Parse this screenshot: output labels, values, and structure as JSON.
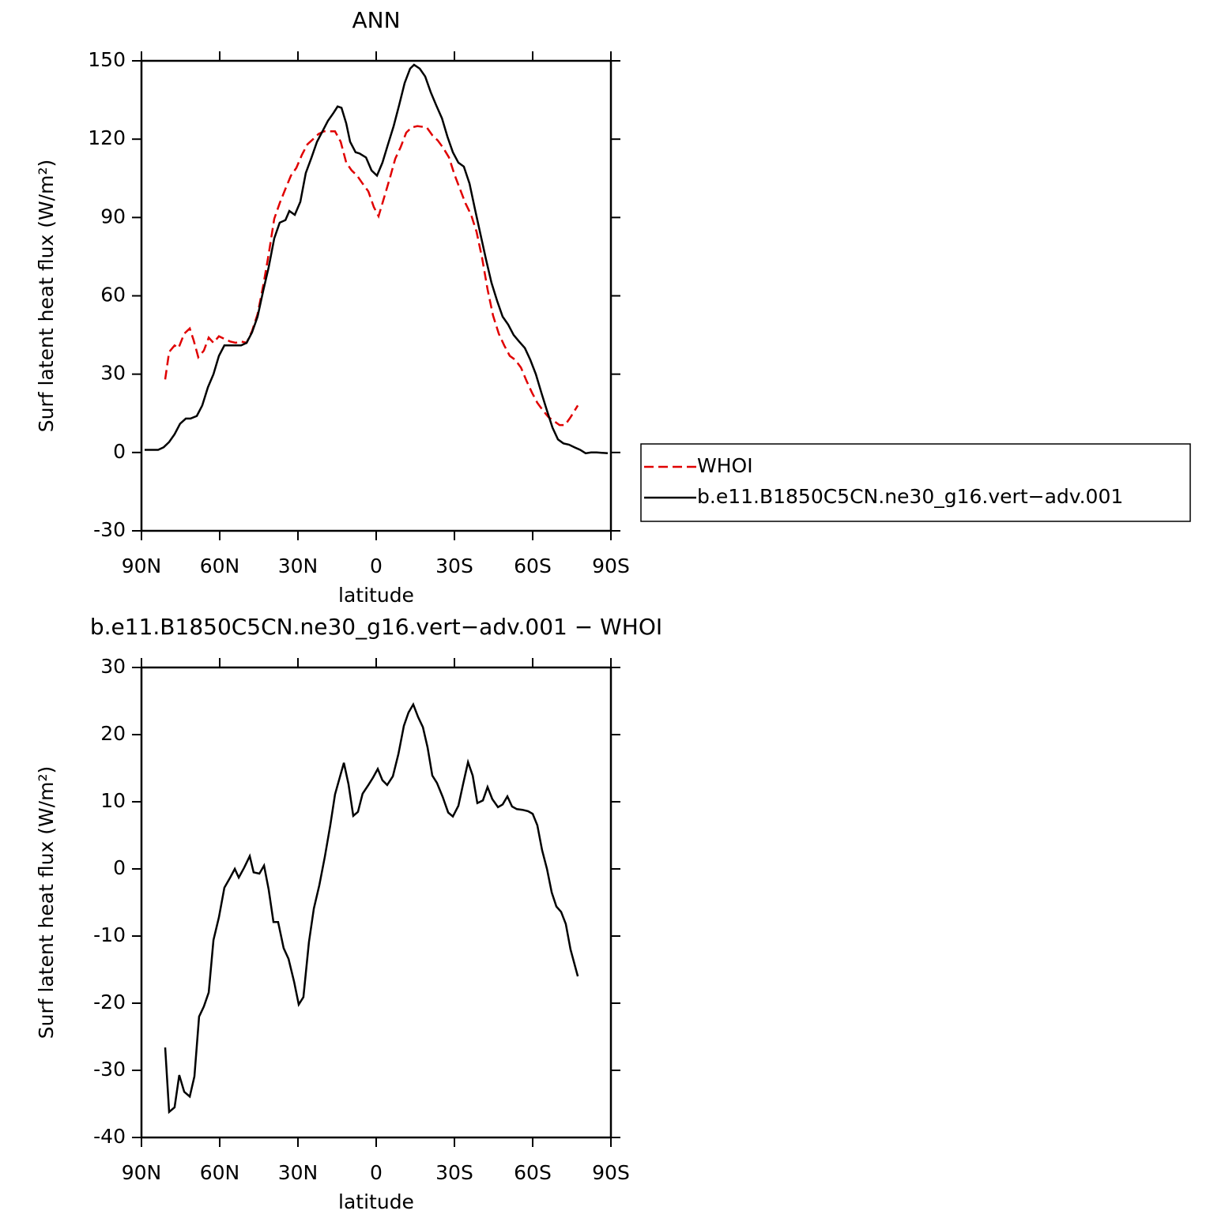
{
  "chart_data": [
    {
      "type": "line",
      "title": "ANN",
      "xlabel": "latitude",
      "ylabel": "Surf latent heat flux (W/m²)",
      "xlim": [
        90,
        -90
      ],
      "xticks": [
        {
          "value": 90,
          "label": "90N"
        },
        {
          "value": 60,
          "label": "60N"
        },
        {
          "value": 30,
          "label": "30N"
        },
        0,
        {
          "value": -30,
          "label": "30S"
        },
        {
          "value": -60,
          "label": "60S"
        },
        {
          "value": -90,
          "label": "90S"
        }
      ],
      "ylim": [
        -30,
        150
      ],
      "yticks": [
        -30,
        0,
        30,
        60,
        90,
        120,
        150
      ],
      "legend": "right",
      "series": [
        {
          "name": "WHOI",
          "color": "#e00000",
          "linestyle": "dashed",
          "x": [
            80.9,
            79.4,
            77.3,
            75.8,
            73.6,
            71.5,
            70,
            68.2,
            66.1,
            64.2,
            62.4,
            60.3,
            58.2,
            56,
            53.9,
            51.8,
            49.7,
            47.6,
            45.5,
            43.3,
            41.2,
            39.1,
            37,
            34.8,
            32.7,
            30.6,
            28.5,
            26.4,
            24.2,
            22.1,
            20,
            15.8,
            13.6,
            11.5,
            9.4,
            7.3,
            5.2,
            3,
            0.9,
            -0.9,
            -3,
            -5.2,
            -7.3,
            -9.4,
            -11.5,
            -13.6,
            -15.8,
            -19.4,
            -21.5,
            -23.6,
            -25.8,
            -27.9,
            -30,
            -32.1,
            -34.2,
            -36.4,
            -38.5,
            -40.6,
            -42.7,
            -44.8,
            -47,
            -49.1,
            -51.2,
            -53.3,
            -55.5,
            -57.6,
            -59.7,
            -61.8,
            -64,
            -66.1,
            -68.2,
            -70.3,
            -72.4,
            -74.5,
            -77.3
          ],
          "values": [
            28,
            38.5,
            41,
            40,
            45.5,
            47.5,
            43,
            36.5,
            39,
            44,
            42,
            44.5,
            43.5,
            42.5,
            42,
            42.5,
            42,
            46.5,
            53,
            64,
            76,
            89.5,
            95.5,
            101,
            106,
            109,
            114,
            118,
            120,
            122,
            123,
            123,
            119,
            111,
            108,
            106,
            103,
            100,
            94,
            90.5,
            97.5,
            105,
            112.5,
            117,
            122.5,
            124.5,
            125,
            124.5,
            121.5,
            119.5,
            116.5,
            113,
            106.5,
            101,
            95.5,
            91,
            84.5,
            74.5,
            62.5,
            52.5,
            45.5,
            41,
            37,
            35.5,
            32.5,
            27.5,
            23,
            19,
            16,
            13.5,
            12,
            10.5,
            10.5,
            13.5,
            18
          ]
        },
        {
          "name": "b.e11.B1850C5CN.ne30_g16.vert−adv.001",
          "color": "#000000",
          "linestyle": "solid",
          "x": [
            88.8,
            83.6,
            81.5,
            79.4,
            77.3,
            75.2,
            73,
            71.2,
            68.8,
            66.7,
            64.5,
            62.4,
            60.3,
            58.2,
            56,
            53.9,
            51.8,
            49.7,
            47.6,
            45.5,
            43.3,
            41.2,
            39.1,
            37,
            34.8,
            33.3,
            31.2,
            29.1,
            27,
            24.8,
            22.7,
            20.6,
            18.5,
            16.4,
            14.8,
            13.3,
            11.5,
            10,
            7.9,
            6.4,
            3.9,
            1.8,
            -0.3,
            -2.4,
            -4.5,
            -6.7,
            -8.8,
            -10.9,
            -13,
            -14.5,
            -16.7,
            -18.8,
            -20.9,
            -23,
            -25.2,
            -27.3,
            -29.4,
            -31.5,
            -33.6,
            -35.8,
            -37.9,
            -40,
            -42.1,
            -44.2,
            -46.4,
            -48.5,
            -50.6,
            -52.7,
            -54.8,
            -57,
            -59.1,
            -61.2,
            -63.3,
            -65.5,
            -67.6,
            -69.7,
            -71.8,
            -73.9,
            -76,
            -78.2,
            -80.3,
            -82.4,
            -84.5,
            -88.8
          ],
          "values": [
            1,
            1,
            2,
            4,
            7,
            11,
            13,
            13,
            14,
            18,
            25,
            30,
            37,
            41,
            41,
            41,
            41,
            42,
            46,
            52,
            62,
            71,
            82,
            88,
            89,
            92.5,
            91,
            96,
            107,
            113,
            119,
            123,
            127,
            130,
            132.5,
            132,
            126,
            119,
            115,
            114.5,
            113,
            108,
            106,
            111,
            118,
            125,
            133,
            141.5,
            147,
            148.5,
            147,
            144,
            138,
            133,
            128,
            121,
            115,
            111,
            109.5,
            103,
            93,
            83.5,
            74,
            65,
            58,
            52,
            49,
            45,
            42.5,
            40,
            35.5,
            30,
            23,
            16,
            9.5,
            5,
            3.5,
            3,
            2,
            1,
            -0.3,
            0,
            0,
            -0.3
          ]
        }
      ]
    },
    {
      "type": "line",
      "title": "b.e11.B1850C5CN.ne30_g16.vert−adv.001 − WHOI",
      "xlabel": "latitude",
      "ylabel": "Surf latent heat flux (W/m²)",
      "xlim": [
        90,
        -90
      ],
      "xticks": [
        {
          "value": 90,
          "label": "90N"
        },
        {
          "value": 60,
          "label": "60N"
        },
        {
          "value": 30,
          "label": "30N"
        },
        0,
        {
          "value": -30,
          "label": "30S"
        },
        {
          "value": -60,
          "label": "60S"
        },
        {
          "value": -90,
          "label": "90S"
        }
      ],
      "ylim": [
        -40,
        30
      ],
      "yticks": [
        -40,
        -30,
        -20,
        -10,
        0,
        10,
        20,
        30
      ],
      "color": "#000000",
      "x": [
        80.9,
        79.4,
        77.3,
        75.5,
        73.6,
        71.5,
        69.7,
        67.9,
        66.1,
        64.2,
        62.4,
        60.3,
        58.2,
        56,
        54.2,
        52.7,
        50.6,
        48.5,
        47,
        44.8,
        43,
        41.2,
        39.4,
        37.6,
        35.5,
        33.6,
        31.5,
        29.7,
        27.9,
        25.8,
        23.9,
        21.8,
        19.7,
        17.6,
        15.8,
        12.4,
        10.6,
        8.8,
        7,
        5.2,
        3,
        1.2,
        -0.6,
        -2.4,
        -4.2,
        -6.4,
        -8.5,
        -10.6,
        -12.4,
        -14.2,
        -16.1,
        -17.9,
        -19.7,
        -21.5,
        -23.3,
        -25.5,
        -27.6,
        -29.4,
        -31.5,
        -33.3,
        -35.2,
        -37,
        -38.8,
        -40.9,
        -42.7,
        -44.5,
        -46.7,
        -48.5,
        -50.3,
        -52.1,
        -53.9,
        -56.1,
        -58.2,
        -60,
        -61.8,
        -63.6,
        -65.5,
        -67.3,
        -69.1,
        -70.9,
        -72.7,
        -74.5,
        -77.3
      ],
      "values": [
        -26.6,
        -36.2,
        -35.5,
        -30.7,
        -33.2,
        -33.9,
        -30.9,
        -22,
        -20.5,
        -18.4,
        -10.6,
        -7.2,
        -2.8,
        -1.3,
        0,
        -1.3,
        0.2,
        1.9,
        -0.5,
        -0.7,
        0.5,
        -3.1,
        -7.9,
        -7.9,
        -11.8,
        -13.4,
        -16.8,
        -20.2,
        -19.1,
        -10.9,
        -5.9,
        -2.4,
        1.8,
        6.5,
        11.1,
        15.8,
        12.6,
        7.9,
        8.5,
        11.2,
        12.5,
        13.6,
        14.9,
        13.2,
        12.5,
        13.8,
        17.1,
        21.3,
        23.3,
        24.5,
        22.6,
        21.1,
        18.1,
        13.9,
        12.8,
        10.7,
        8.4,
        7.8,
        9.4,
        12.6,
        15.9,
        13.9,
        9.8,
        10.2,
        12.2,
        10.4,
        9.2,
        9.6,
        10.8,
        9.3,
        8.9,
        8.8,
        8.6,
        8.2,
        6.5,
        2.8,
        0,
        -3.5,
        -5.6,
        -6.4,
        -8.2,
        -12,
        -16
      ]
    }
  ]
}
